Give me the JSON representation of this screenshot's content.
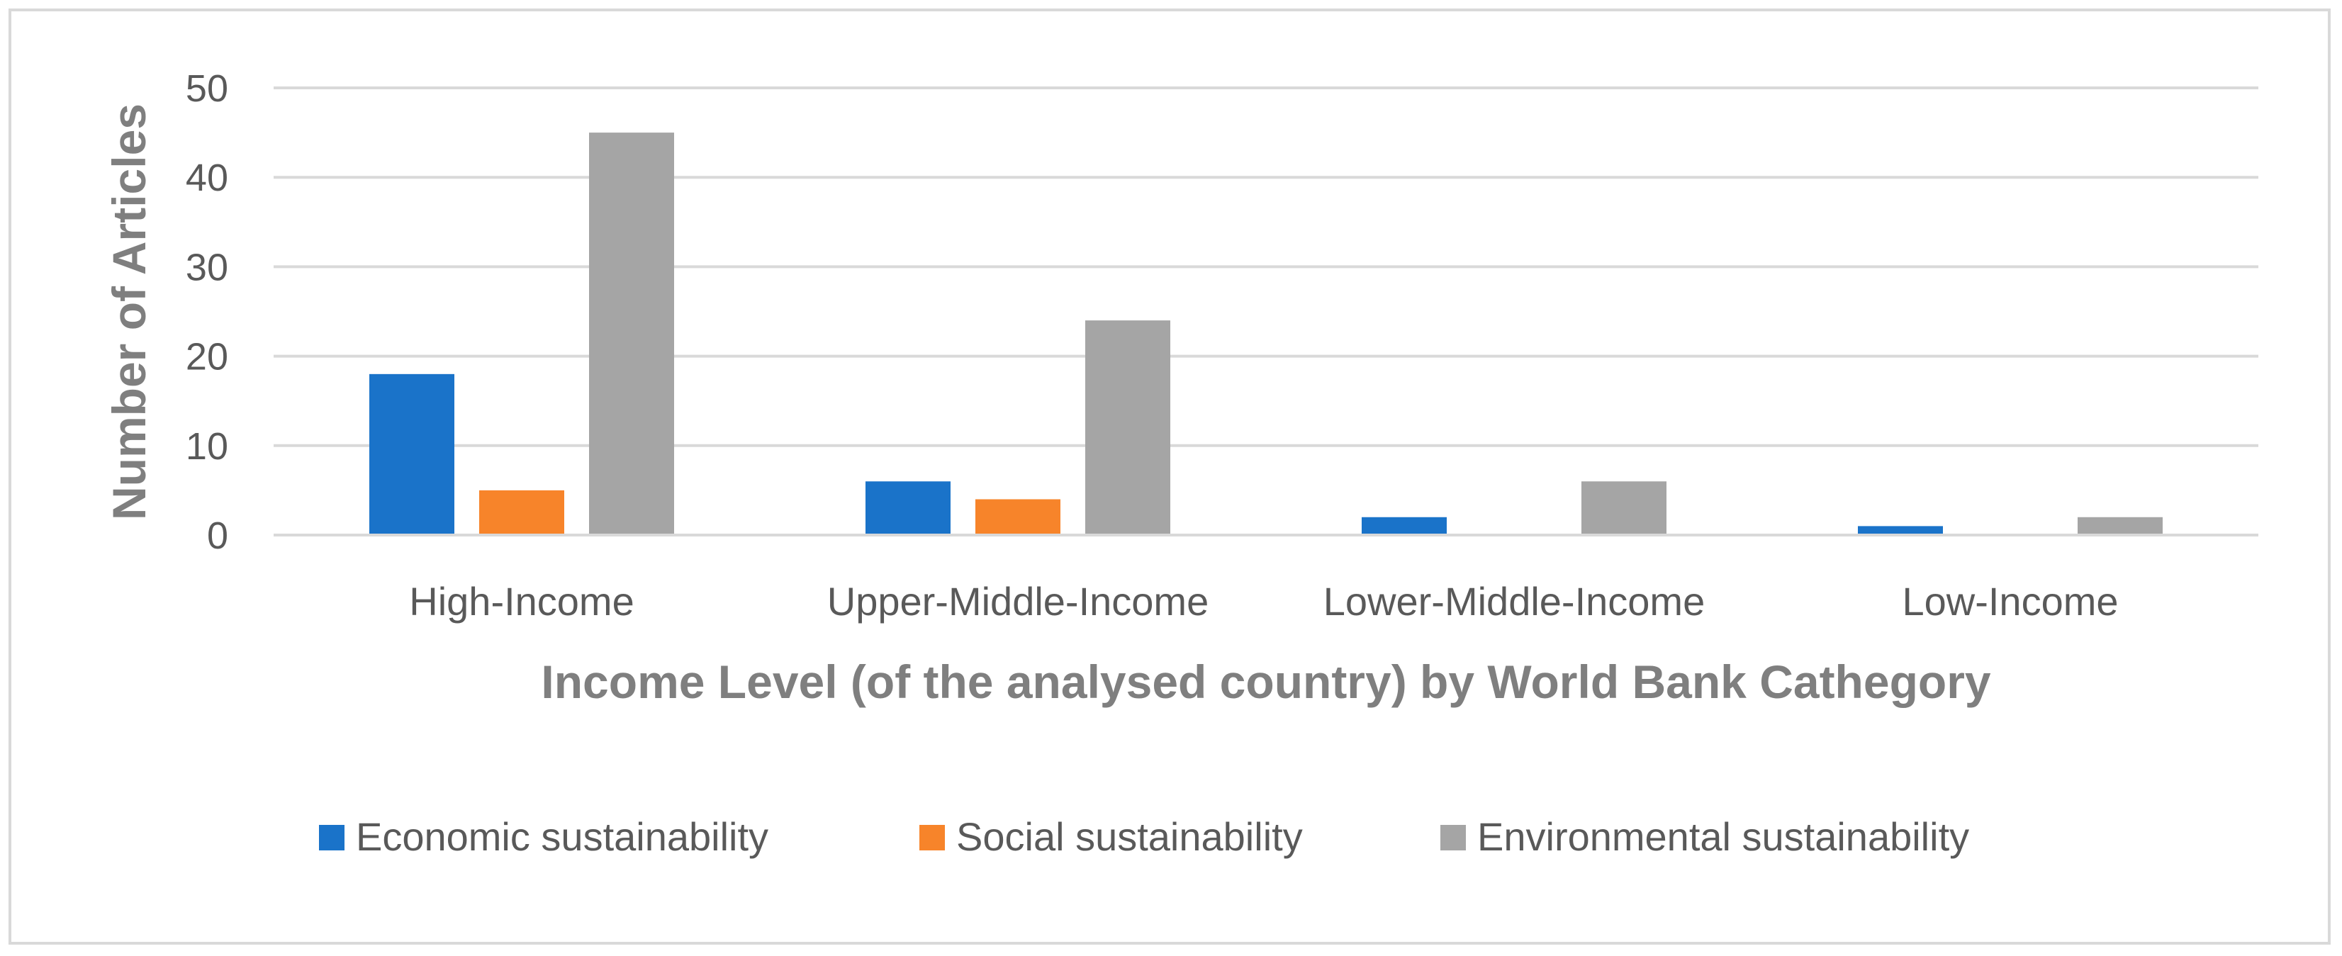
{
  "chart_data": {
    "type": "bar",
    "title": "",
    "xlabel": "Income Level (of the analysed country) by World Bank Cathegory",
    "ylabel": "Number of Articles",
    "categories": [
      "High-Income",
      "Upper-Middle-Income",
      "Lower-Middle-Income",
      "Low-Income"
    ],
    "series": [
      {
        "name": "Economic sustainability",
        "color": "#1a73c9",
        "values": [
          18,
          6,
          2,
          1
        ]
      },
      {
        "name": "Social sustainability",
        "color": "#f7842a",
        "values": [
          5,
          4,
          0,
          0
        ]
      },
      {
        "name": "Environmental sustainability",
        "color": "#a5a5a5",
        "values": [
          45,
          24,
          6,
          2
        ]
      }
    ],
    "ylim": [
      0,
      50
    ],
    "yticks": [
      "0",
      "10",
      "20",
      "30",
      "40",
      "50"
    ],
    "grid": true,
    "legend": "bottom"
  }
}
